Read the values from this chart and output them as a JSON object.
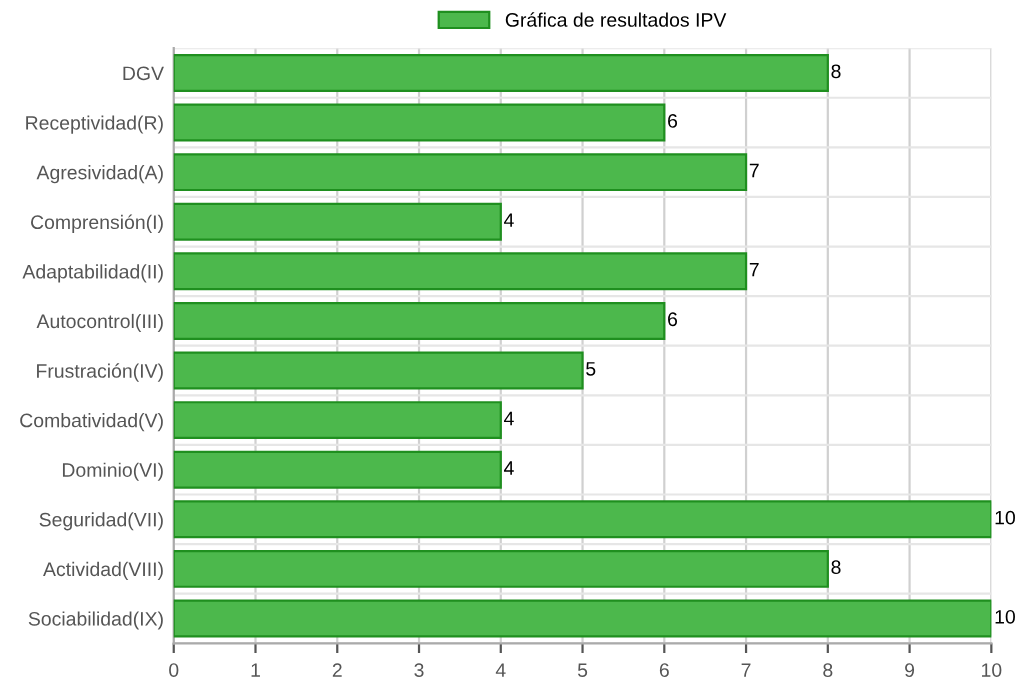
{
  "chart_data": {
    "type": "bar",
    "orientation": "horizontal",
    "categories": [
      "DGV",
      "Receptividad(R)",
      "Agresividad(A)",
      "Comprensión(I)",
      "Adaptabilidad(II)",
      "Autocontrol(III)",
      "Frustración(IV)",
      "Combatividad(V)",
      "Dominio(VI)",
      "Seguridad(VII)",
      "Actividad(VIII)",
      "Sociabilidad(IX)"
    ],
    "series": [
      {
        "name": "Gráfica de resultados IPV",
        "color": "#4cb84c",
        "values": [
          8,
          6,
          7,
          4,
          7,
          6,
          5,
          4,
          4,
          10,
          8,
          10
        ]
      }
    ],
    "xlim": [
      0,
      10
    ],
    "xticks": [
      0,
      1,
      2,
      3,
      4,
      5,
      6,
      7,
      8,
      9,
      10
    ],
    "grid": true,
    "legend": "top",
    "data_labels": true
  }
}
